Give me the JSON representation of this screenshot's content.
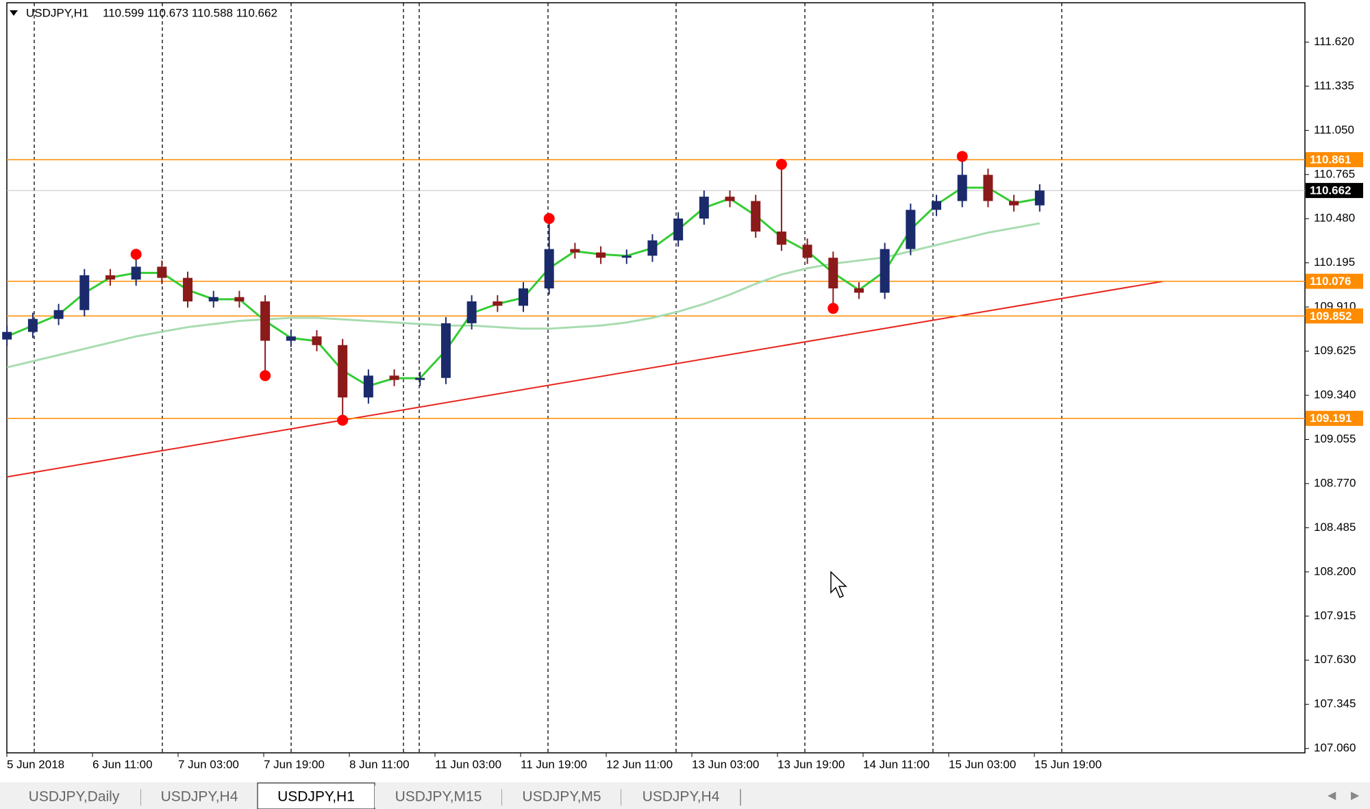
{
  "chart_data": {
    "type": "candlestick",
    "header": {
      "symbol": "USDJPY,H1",
      "ohlc": "110.599 110.673 110.588 110.662"
    },
    "x_labels": [
      "5 Jun 2018",
      "6 Jun 11:00",
      "7 Jun 03:00",
      "7 Jun 19:00",
      "8 Jun 11:00",
      "11 Jun 03:00",
      "11 Jun 19:00",
      "12 Jun 11:00",
      "13 Jun 03:00",
      "13 Jun 19:00",
      "14 Jun 11:00",
      "15 Jun 03:00",
      "15 Jun 19:00"
    ],
    "open": [
      109.7,
      109.749,
      109.833,
      109.89,
      110.115,
      110.087,
      110.17,
      110.098,
      109.946,
      109.974,
      109.946,
      109.692,
      109.72,
      109.664,
      109.326,
      109.467,
      109.439,
      109.452,
      109.805,
      109.946,
      109.918,
      110.03,
      110.284,
      110.262,
      110.228,
      110.241,
      110.34,
      110.481,
      110.622,
      110.594,
      110.397,
      110.312,
      110.228,
      110.03,
      110.002,
      110.284,
      110.537,
      110.594,
      110.763,
      110.594,
      110.566
    ],
    "high": [
      109.789,
      109.873,
      109.93,
      110.155,
      110.155,
      110.25,
      110.21,
      110.138,
      110.014,
      110.014,
      109.986,
      109.76,
      109.76,
      109.704,
      109.507,
      109.507,
      109.492,
      109.845,
      109.986,
      109.986,
      110.07,
      110.481,
      110.324,
      110.302,
      110.281,
      110.38,
      110.521,
      110.662,
      110.662,
      110.634,
      110.831,
      110.352,
      110.268,
      110.07,
      110.324,
      110.577,
      110.634,
      110.882,
      110.803,
      110.634,
      110.702
    ],
    "low": [
      109.66,
      109.709,
      109.793,
      109.85,
      110.047,
      110.047,
      110.058,
      109.906,
      109.906,
      109.906,
      109.467,
      109.652,
      109.624,
      109.179,
      109.286,
      109.399,
      109.399,
      109.412,
      109.765,
      109.878,
      109.878,
      109.99,
      110.222,
      110.188,
      110.188,
      110.201,
      110.3,
      110.441,
      110.554,
      110.357,
      110.272,
      110.188,
      109.901,
      109.962,
      109.962,
      110.244,
      110.497,
      110.554,
      110.554,
      110.526,
      110.526
    ],
    "close": [
      109.749,
      109.833,
      109.89,
      110.115,
      110.087,
      110.17,
      110.098,
      109.946,
      109.974,
      109.946,
      109.692,
      109.72,
      109.664,
      109.326,
      109.467,
      109.439,
      109.452,
      109.805,
      109.946,
      109.918,
      110.03,
      110.284,
      110.262,
      110.228,
      110.241,
      110.34,
      110.481,
      110.622,
      110.594,
      110.397,
      110.312,
      110.228,
      110.03,
      110.002,
      110.284,
      110.537,
      110.594,
      110.763,
      110.594,
      110.566,
      110.662
    ],
    "bull_color": "#1b2a6b",
    "bear_color": "#8b1a1a",
    "moving_averages": [
      {
        "color": "#a8dcb0",
        "values": [
          109.52,
          109.56,
          109.6,
          109.64,
          109.68,
          109.72,
          109.75,
          109.78,
          109.8,
          109.82,
          109.83,
          109.84,
          109.84,
          109.83,
          109.82,
          109.81,
          109.8,
          109.79,
          109.79,
          109.78,
          109.77,
          109.77,
          109.78,
          109.79,
          109.81,
          109.84,
          109.88,
          109.93,
          109.99,
          110.06,
          110.12,
          110.16,
          110.19,
          110.21,
          110.23,
          110.27,
          110.31,
          110.35,
          110.39,
          110.42,
          110.45
        ]
      },
      {
        "color": "#33cc33",
        "values": [
          109.72,
          109.79,
          109.86,
          110.0,
          110.1,
          110.13,
          110.13,
          110.02,
          109.96,
          109.96,
          109.82,
          109.71,
          109.69,
          109.5,
          109.4,
          109.45,
          109.45,
          109.63,
          109.87,
          109.93,
          109.97,
          110.16,
          110.27,
          110.25,
          110.24,
          110.29,
          110.41,
          110.55,
          110.61,
          110.5,
          110.36,
          110.27,
          110.13,
          110.02,
          110.14,
          110.41,
          110.57,
          110.68,
          110.68,
          110.58,
          110.61
        ]
      }
    ],
    "fractals": {
      "color": "#ff0000",
      "index": [
        5,
        10,
        13,
        21,
        30,
        32,
        37
      ],
      "values": [
        110.25,
        109.467,
        109.179,
        110.481,
        110.831,
        109.901,
        110.882
      ]
    },
    "levels": {
      "color": "#ff8c00",
      "values": [
        110.861,
        110.076,
        109.852,
        109.191
      ]
    },
    "current_price": 110.662,
    "trendline": {
      "color": "#e8231c",
      "start": 108.813,
      "end": 110.075
    },
    "ylim": [
      107.032,
      111.874
    ],
    "yticks": [
      {
        "value": 111.62,
        "label": "111.620"
      },
      {
        "value": 111.335,
        "label": "111.335"
      },
      {
        "value": 111.05,
        "label": "111.050"
      },
      {
        "value": 110.765,
        "label": "110.765"
      },
      {
        "value": 110.48,
        "label": "110.480"
      },
      {
        "value": 110.195,
        "label": "110.195"
      },
      {
        "value": 109.91,
        "label": "109.910"
      },
      {
        "value": 109.625,
        "label": "109.625"
      },
      {
        "value": 109.34,
        "label": "109.340"
      },
      {
        "value": 109.055,
        "label": "109.055"
      },
      {
        "value": 108.77,
        "label": "108.770"
      },
      {
        "value": 108.485,
        "label": "108.485"
      },
      {
        "value": 108.2,
        "label": "108.200"
      },
      {
        "value": 107.915,
        "label": "107.915"
      },
      {
        "value": 107.63,
        "label": "107.630"
      },
      {
        "value": 107.345,
        "label": "107.345"
      },
      {
        "value": 107.06,
        "label": "107.060"
      }
    ]
  },
  "tabs": {
    "items": [
      "USDJPY,Daily",
      "USDJPY,H4",
      "USDJPY,H1",
      "USDJPY,M15",
      "USDJPY,M5",
      "USDJPY,H4"
    ],
    "active": 2
  }
}
